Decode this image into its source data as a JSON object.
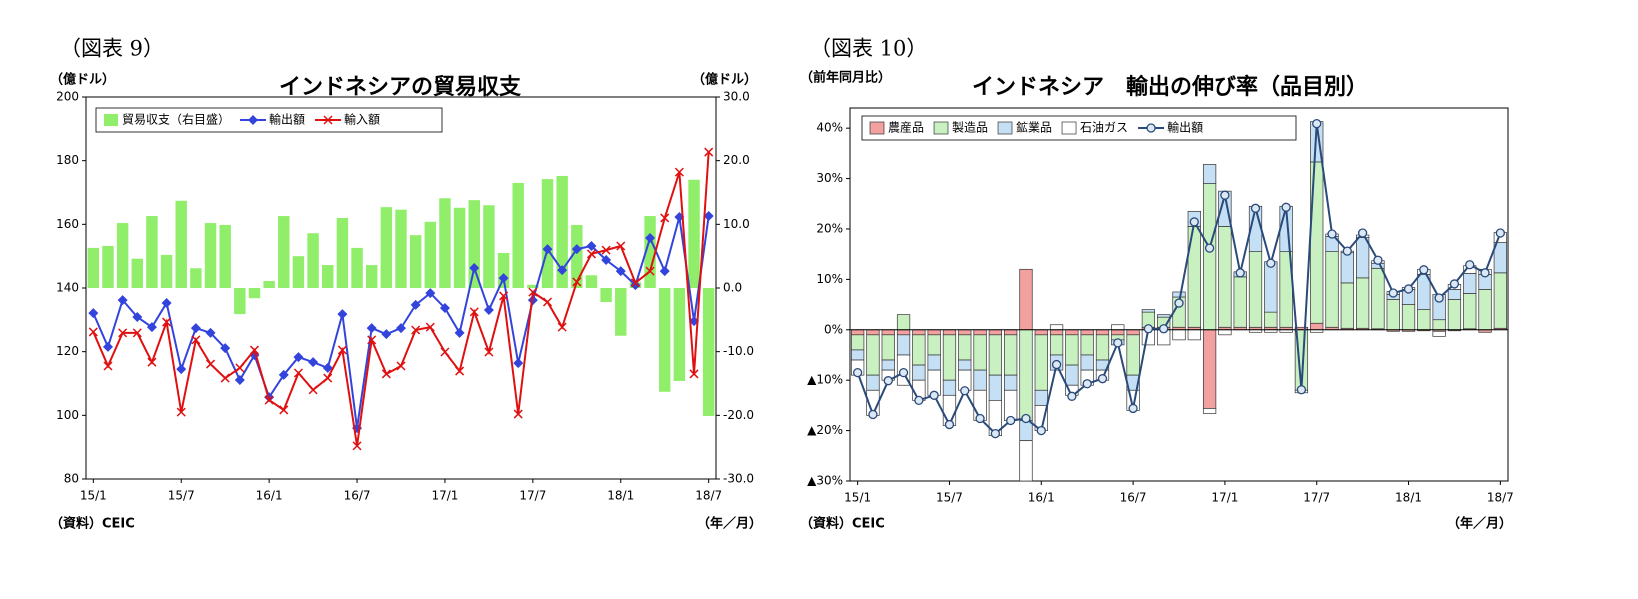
{
  "chart_data": [
    {
      "type": "combo",
      "label": "（図表 9）",
      "title": "インドネシアの貿易収支",
      "y_label": "（億ドル）",
      "y2_label": "（億ドル）",
      "source": "（資料）CEIC",
      "x_label": "（年／月）",
      "categories": [
        "15/1",
        null,
        null,
        null,
        null,
        null,
        "15/7",
        null,
        null,
        null,
        null,
        null,
        "16/1",
        null,
        null,
        null,
        null,
        null,
        "16/7",
        null,
        null,
        null,
        null,
        null,
        "17/1",
        null,
        null,
        null,
        null,
        null,
        "17/7",
        null,
        null,
        null,
        null,
        null,
        "18/1",
        null,
        null,
        null,
        null,
        null,
        "18/7"
      ],
      "ylim": [
        80,
        200
      ],
      "yticks": [
        80,
        100,
        120,
        140,
        160,
        180,
        200
      ],
      "y2lim": [
        -30,
        30
      ],
      "y2ticks": [
        {
          "value": -30,
          "label": "-30.0"
        },
        {
          "value": -20,
          "label": "-20.0"
        },
        {
          "value": -10,
          "label": "-10.0"
        },
        {
          "value": 0,
          "label": "0.0"
        },
        {
          "value": 10,
          "label": "10.0"
        },
        {
          "value": 20,
          "label": "20.0"
        },
        {
          "value": 30,
          "label": "30.0"
        }
      ],
      "stacked": false,
      "series": [
        {
          "name": "貿易収支（右目盛）",
          "type": "bar",
          "axis": "y2",
          "color": "#90ee6a",
          "values": [
            6.3,
            6.6,
            10.2,
            4.6,
            11.3,
            5.2,
            13.7,
            3.1,
            10.2,
            9.9,
            -4.1,
            -1.6,
            1.1,
            11.3,
            5.0,
            8.6,
            3.6,
            11.0,
            6.3,
            3.6,
            12.7,
            12.3,
            8.3,
            10.4,
            14.1,
            12.6,
            13.8,
            13.0,
            5.5,
            16.5,
            0.5,
            17.1,
            17.6,
            9.9,
            2.0,
            -2.2,
            -7.5,
            0.9,
            11.3,
            -16.3,
            -14.6,
            17.0,
            -20.1
          ]
        },
        {
          "name": "輸出額",
          "type": "line",
          "color": "#3344dd",
          "marker": "diamond",
          "values": [
            132.1,
            121.5,
            136.2,
            130.9,
            127.7,
            135.3,
            114.5,
            127.4,
            125.9,
            121.1,
            111.1,
            118.9,
            105.7,
            112.7,
            118.3,
            116.7,
            114.9,
            131.8,
            96.0,
            127.4,
            125.5,
            127.4,
            134.7,
            138.4,
            133.7,
            125.9,
            146.3,
            133.1,
            143.1,
            116.4,
            136.2,
            152.2,
            145.6,
            152.2,
            153.2,
            148.8,
            145.3,
            140.9,
            155.7,
            145.3,
            162.3,
            129.6,
            162.6
          ]
        },
        {
          "name": "輸入額",
          "type": "line",
          "color": "#e01010",
          "marker": "x",
          "values": [
            126.2,
            115.5,
            125.9,
            125.9,
            116.7,
            129.3,
            101.0,
            123.7,
            116.1,
            111.7,
            114.9,
            120.5,
            104.8,
            101.7,
            113.3,
            108.0,
            111.7,
            120.5,
            90.4,
            123.7,
            113.0,
            115.5,
            126.8,
            127.7,
            119.9,
            113.9,
            132.5,
            119.9,
            137.5,
            100.4,
            138.7,
            135.6,
            127.7,
            141.9,
            150.7,
            151.9,
            153.2,
            141.6,
            145.3,
            162.0,
            176.4,
            113.0,
            182.7
          ]
        }
      ]
    },
    {
      "type": "combo",
      "label": "（図表 10）",
      "title": "インドネシア　輸出の伸び率（品目別）",
      "y_label": "（前年同月比）",
      "source": "（資料）CEIC",
      "x_label": "（年／月）",
      "categories": [
        "15/1",
        null,
        null,
        null,
        null,
        null,
        "15/7",
        null,
        null,
        null,
        null,
        null,
        "16/1",
        null,
        null,
        null,
        null,
        null,
        "16/7",
        null,
        null,
        null,
        null,
        null,
        "17/1",
        null,
        null,
        null,
        null,
        null,
        "17/7",
        null,
        null,
        null,
        null,
        null,
        "18/1",
        null,
        null,
        null,
        null,
        null,
        "18/7"
      ],
      "ylim": [
        -30,
        44
      ],
      "yticks": [
        {
          "value": -30,
          "label": "▲30%"
        },
        {
          "value": -20,
          "label": "▲20%"
        },
        {
          "value": -10,
          "label": "▲10%"
        },
        {
          "value": 0,
          "label": "0%"
        },
        {
          "value": 10,
          "label": "10%"
        },
        {
          "value": 20,
          "label": "20%"
        },
        {
          "value": 30,
          "label": "30%"
        },
        {
          "value": 40,
          "label": "40%"
        }
      ],
      "stacked": true,
      "bar_edgecolor": "#333333",
      "series": [
        {
          "name": "農産品",
          "type": "bar",
          "color": "#f2a0a0",
          "values": [
            -1,
            -1,
            -1,
            -1,
            -1,
            -1,
            -1,
            -1,
            -1,
            -1,
            -1,
            12,
            -1,
            -1,
            -1,
            -1,
            -1,
            -1,
            -1,
            0.5,
            0.5,
            0.5,
            0.5,
            -15.6,
            0.5,
            0.5,
            0.5,
            0.5,
            0.5,
            0.5,
            1.3,
            0.5,
            0.3,
            0.3,
            0.2,
            -0.3,
            -0.3,
            -0.2,
            -0.3,
            -0.2,
            0.2,
            -0.5,
            0.3
          ]
        },
        {
          "name": "製造品",
          "type": "bar",
          "color": "#c8f0c0",
          "values": [
            -3,
            -8,
            -5,
            3,
            -6,
            -4,
            -9,
            -5,
            -7,
            -8,
            -8,
            -18,
            -11,
            -4,
            -6,
            -4,
            -5,
            -1,
            -8,
            3,
            2,
            6,
            20,
            29,
            20,
            10,
            15,
            3,
            15,
            -12,
            32,
            15,
            9,
            10,
            12,
            6,
            5,
            4,
            2,
            6,
            7,
            8,
            11
          ]
        },
        {
          "name": "鉱業品",
          "type": "bar",
          "color": "#c5e0f5",
          "values": [
            -2,
            -3,
            -2,
            -4,
            -3,
            -3,
            -3,
            -2,
            -4,
            -5,
            -3,
            -4,
            -3,
            -3,
            -4,
            -3,
            -2,
            -1,
            -3,
            0.5,
            0.5,
            1,
            3,
            3.8,
            7,
            1,
            9,
            10,
            9,
            0,
            8,
            3,
            6,
            8,
            1,
            1,
            3,
            7,
            5,
            2,
            4,
            3,
            6
          ]
        },
        {
          "name": "石油ガス",
          "type": "bar",
          "color": "#ffffff",
          "values": [
            -3,
            -5,
            -2,
            -6,
            -4,
            -5,
            -6,
            -4,
            -6,
            -7,
            -6,
            -8,
            -5,
            1,
            -2,
            -3,
            -2,
            1,
            -4,
            -3,
            -3,
            -2,
            -2,
            -1,
            -1,
            0,
            -0.5,
            -0.5,
            -0.5,
            -0.5,
            -0.5,
            0.5,
            0.3,
            0.5,
            0.5,
            0.6,
            0.4,
            1,
            -1,
            1,
            1.5,
            1,
            2
          ]
        },
        {
          "name": "輸出額",
          "type": "line",
          "color": "#2a4a7a",
          "marker": "circle",
          "marker_fill": "#dde8f5",
          "values": [
            -8.5,
            -16.8,
            -10.1,
            -8.5,
            -14.0,
            -13.0,
            -18.8,
            -12.1,
            -17.6,
            -20.6,
            -18.0,
            -17.6,
            -20.0,
            -6.9,
            -13.2,
            -10.7,
            -9.7,
            -2.6,
            -15.6,
            0.2,
            0.2,
            5.3,
            21.4,
            16.2,
            26.7,
            11.3,
            24.1,
            13.2,
            24.3,
            -11.9,
            40.9,
            19.0,
            15.6,
            19.2,
            13.8,
            7.3,
            8.1,
            11.9,
            6.3,
            9.1,
            12.9,
            11.3,
            19.2
          ]
        }
      ]
    }
  ]
}
